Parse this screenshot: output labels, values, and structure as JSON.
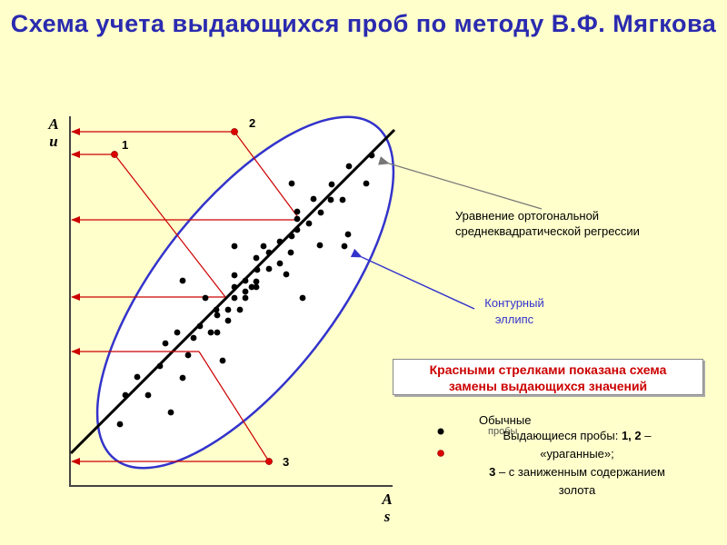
{
  "title": "Схема учета выдающихся проб по методу В.Ф. Мягкова",
  "axes": {
    "y_label_line1": "A",
    "y_label_line2": "u",
    "x_label_line1": "A",
    "x_label_line2": "s"
  },
  "outlier_labels": [
    "1",
    "2",
    "3"
  ],
  "annotations": {
    "regression_line1": "Уравнение ортогональной",
    "regression_line2": "среднеквадратической регрессии",
    "ellipse_line1": "Контурный",
    "ellipse_line2": "эллипс"
  },
  "red_box": {
    "line1": "Красными стрелками показана схема",
    "line2": "замены выдающихся значений"
  },
  "legend": {
    "ordinary": "Обычные",
    "ordinary_suffix": "пробы",
    "outliers_prefix": "Выдающиеся пробы:",
    "outliers_nums": "1, 2",
    "outliers_dash": "–",
    "hurricane": "«ураганные»;",
    "low_prefix": "3",
    "low_text": "– с заниженным содержанием",
    "low_text2": "золота"
  },
  "colors": {
    "background": "#ffffcc",
    "title": "#2a2ab0",
    "ellipse": "#3333cc",
    "arrows": "#cc0000",
    "points": "#000000",
    "outlier_points": "#dd0000"
  }
}
